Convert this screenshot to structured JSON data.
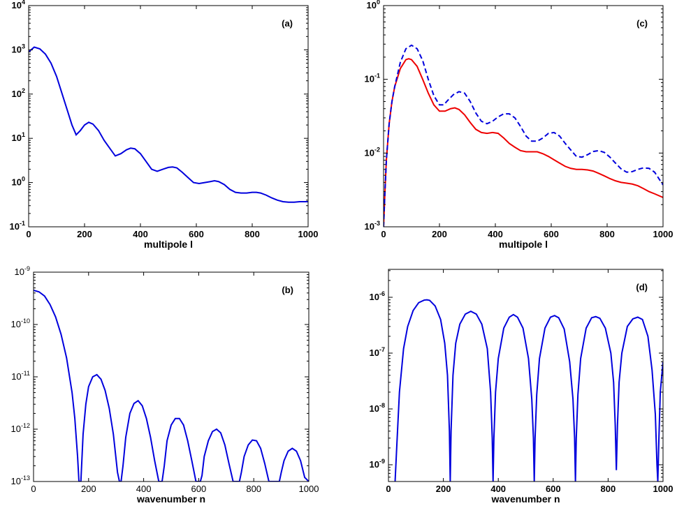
{
  "chart_data": [
    {
      "panel_label": "(a)",
      "type": "line",
      "xlabel": "multipole l",
      "xlim": [
        0,
        1000
      ],
      "xticks": [
        0,
        200,
        400,
        600,
        800,
        1000
      ],
      "yscale": "log",
      "ylim_exp": [
        -1,
        4
      ],
      "ytick_exps": [
        -1,
        0,
        1,
        2,
        3,
        4
      ],
      "bold_ticks": true,
      "series": [
        {
          "color": "#0000dd",
          "style": "solid",
          "x": [
            0,
            20,
            40,
            60,
            80,
            100,
            120,
            140,
            155,
            170,
            185,
            200,
            215,
            230,
            250,
            270,
            290,
            310,
            330,
            350,
            365,
            380,
            400,
            420,
            440,
            460,
            480,
            500,
            515,
            530,
            550,
            570,
            590,
            610,
            630,
            650,
            665,
            680,
            700,
            720,
            740,
            760,
            780,
            800,
            815,
            830,
            850,
            870,
            890,
            910,
            930,
            950,
            970,
            1000
          ],
          "y": [
            900,
            1150,
            1050,
            800,
            500,
            250,
            100,
            40,
            20,
            12,
            15,
            20,
            23,
            21,
            15,
            9,
            6,
            4,
            4.5,
            5.5,
            6,
            5.8,
            4.5,
            3,
            2,
            1.8,
            2,
            2.2,
            2.25,
            2.15,
            1.7,
            1.3,
            1.0,
            0.95,
            1.0,
            1.05,
            1.1,
            1.05,
            0.9,
            0.7,
            0.6,
            0.58,
            0.58,
            0.6,
            0.6,
            0.58,
            0.52,
            0.45,
            0.4,
            0.37,
            0.36,
            0.36,
            0.37,
            0.37
          ]
        }
      ]
    },
    {
      "panel_label": "(c)",
      "type": "line",
      "xlabel": "multipole l",
      "xlim": [
        0,
        1000
      ],
      "xticks": [
        0,
        200,
        400,
        600,
        800,
        1000
      ],
      "yscale": "log",
      "ylim_exp": [
        -3,
        0
      ],
      "ytick_exps": [
        -3,
        -2,
        -1,
        0
      ],
      "bold_ticks": true,
      "series": [
        {
          "color": "#ee0000",
          "style": "solid",
          "x": [
            0,
            5,
            10,
            20,
            30,
            40,
            60,
            80,
            90,
            100,
            120,
            140,
            160,
            180,
            200,
            220,
            240,
            255,
            270,
            290,
            310,
            330,
            350,
            370,
            390,
            410,
            430,
            450,
            470,
            490,
            510,
            530,
            550,
            570,
            590,
            610,
            630,
            650,
            670,
            690,
            710,
            730,
            750,
            770,
            790,
            810,
            830,
            850,
            870,
            890,
            910,
            930,
            950,
            970,
            1000
          ],
          "y": [
            0.001,
            0.003,
            0.008,
            0.025,
            0.05,
            0.08,
            0.14,
            0.185,
            0.19,
            0.185,
            0.15,
            0.1,
            0.065,
            0.045,
            0.037,
            0.037,
            0.04,
            0.041,
            0.039,
            0.033,
            0.026,
            0.021,
            0.019,
            0.0185,
            0.019,
            0.0185,
            0.016,
            0.0135,
            0.012,
            0.0108,
            0.0104,
            0.0104,
            0.0104,
            0.0098,
            0.009,
            0.0081,
            0.0073,
            0.0066,
            0.0062,
            0.006,
            0.006,
            0.0059,
            0.0057,
            0.0053,
            0.0049,
            0.0045,
            0.0042,
            0.004,
            0.0039,
            0.0038,
            0.0036,
            0.0033,
            0.003,
            0.0028,
            0.0025
          ]
        },
        {
          "color": "#0000dd",
          "style": "dashed",
          "x": [
            0,
            5,
            10,
            20,
            30,
            40,
            60,
            80,
            100,
            120,
            140,
            160,
            180,
            200,
            215,
            230,
            250,
            270,
            290,
            310,
            330,
            350,
            370,
            390,
            410,
            430,
            450,
            470,
            490,
            510,
            530,
            550,
            570,
            590,
            610,
            630,
            650,
            670,
            690,
            710,
            730,
            750,
            770,
            790,
            810,
            830,
            850,
            870,
            890,
            910,
            930,
            950,
            970,
            1000
          ],
          "y": [
            0.001,
            0.003,
            0.008,
            0.025,
            0.05,
            0.08,
            0.17,
            0.26,
            0.29,
            0.26,
            0.18,
            0.1,
            0.06,
            0.045,
            0.045,
            0.052,
            0.062,
            0.068,
            0.065,
            0.05,
            0.035,
            0.027,
            0.025,
            0.027,
            0.031,
            0.034,
            0.034,
            0.03,
            0.023,
            0.017,
            0.0145,
            0.0145,
            0.016,
            0.0185,
            0.019,
            0.017,
            0.0135,
            0.011,
            0.009,
            0.0088,
            0.0095,
            0.0105,
            0.0108,
            0.0102,
            0.0088,
            0.0073,
            0.0061,
            0.0055,
            0.0056,
            0.006,
            0.0063,
            0.0062,
            0.0055,
            0.0037
          ]
        }
      ]
    },
    {
      "panel_label": "(b)",
      "type": "line",
      "xlabel": "wavenumber n",
      "xlim": [
        0,
        1000
      ],
      "xticks": [
        0,
        200,
        400,
        600,
        800,
        1000
      ],
      "yscale": "log",
      "ylim_exp": [
        -13,
        -9
      ],
      "ytick_exps": [
        -13,
        -12,
        -11,
        -10,
        -9
      ],
      "bold_ticks": false,
      "series": [
        {
          "color": "#0000dd",
          "style": "solid",
          "x": [
            0,
            20,
            40,
            60,
            80,
            100,
            120,
            140,
            150,
            160,
            165,
            168,
            172,
            180,
            190,
            200,
            215,
            230,
            245,
            260,
            275,
            290,
            305,
            312,
            318,
            325,
            335,
            350,
            365,
            380,
            395,
            410,
            425,
            440,
            455,
            461,
            467,
            475,
            485,
            500,
            515,
            530,
            545,
            560,
            575,
            590,
            600,
            606,
            612,
            620,
            635,
            650,
            665,
            680,
            695,
            710,
            725,
            740,
            748,
            755,
            765,
            780,
            795,
            810,
            825,
            840,
            855,
            870,
            885,
            893,
            900,
            910,
            925,
            940,
            955,
            970,
            985,
            1000
          ],
          "y": [
            4.5e-10,
            4.2e-10,
            3.5e-10,
            2.4e-10,
            1.4e-10,
            6.5e-11,
            2.3e-11,
            5e-12,
            1.6e-12,
            3e-13,
            1e-13,
            1e-13,
            1e-13,
            8e-13,
            3e-12,
            6.5e-12,
            1e-11,
            1.1e-11,
            9e-12,
            5.5e-12,
            2.5e-12,
            8e-13,
            1.5e-13,
            1e-13,
            1e-13,
            2e-13,
            7e-13,
            2e-12,
            3.1e-12,
            3.5e-12,
            2.8e-12,
            1.6e-12,
            7e-13,
            2.5e-13,
            1e-13,
            1e-13,
            1e-13,
            2e-13,
            6e-13,
            1.2e-12,
            1.6e-12,
            1.6e-12,
            1.2e-12,
            6e-13,
            2.5e-13,
            1e-13,
            1e-13,
            1e-13,
            1.3e-13,
            3e-13,
            6e-13,
            9e-13,
            1e-12,
            8.5e-13,
            5e-13,
            2.2e-13,
            1e-13,
            1e-13,
            1e-13,
            1.5e-13,
            3e-13,
            5e-13,
            6.2e-13,
            6e-13,
            4.3e-13,
            2.2e-13,
            1e-13,
            1e-13,
            1e-13,
            1e-13,
            1.5e-13,
            2.5e-13,
            3.8e-13,
            4.3e-13,
            3.8e-13,
            2.5e-13,
            1.2e-13,
            1e-13
          ]
        }
      ]
    },
    {
      "panel_label": "(d)",
      "type": "line",
      "xlabel": "wavenumber n",
      "xlim": [
        0,
        1000
      ],
      "xticks": [
        0,
        200,
        400,
        600,
        800,
        1000
      ],
      "yscale": "log",
      "ylim_exp": [
        -9.3,
        -5.5
      ],
      "ytick_exps": [
        -9,
        -8,
        -7,
        -6
      ],
      "bold_ticks": true,
      "series": [
        {
          "color": "#0000dd",
          "style": "solid",
          "x": [
            22,
            30,
            40,
            55,
            70,
            90,
            110,
            130,
            140,
            150,
            170,
            190,
            205,
            215,
            222,
            225,
            228,
            235,
            245,
            260,
            280,
            300,
            320,
            340,
            360,
            372,
            378,
            381,
            384,
            390,
            400,
            420,
            440,
            455,
            470,
            490,
            510,
            522,
            528,
            531,
            534,
            540,
            550,
            570,
            590,
            605,
            620,
            640,
            660,
            672,
            678,
            681,
            684,
            690,
            700,
            720,
            740,
            755,
            770,
            790,
            810,
            820,
            826,
            830,
            834,
            840,
            850,
            870,
            890,
            908,
            925,
            945,
            960,
            972,
            978,
            981,
            985,
            990,
            1000
          ],
          "y": [
            3e-10,
            2e-09,
            2e-08,
            1.2e-07,
            3e-07,
            5.8e-07,
            8e-07,
            8.9e-07,
            9e-07,
            8.8e-07,
            7e-07,
            4e-07,
            1.5e-07,
            4e-08,
            4e-09,
            5e-10,
            4e-09,
            4e-08,
            1.5e-07,
            3.3e-07,
            5e-07,
            5.6e-07,
            5e-07,
            3.3e-07,
            1.2e-07,
            2e-08,
            3e-09,
            5e-10,
            3e-09,
            2e-08,
            8e-08,
            2.8e-07,
            4.4e-07,
            4.9e-07,
            4.4e-07,
            2.8e-07,
            8e-08,
            1.5e-08,
            3e-09,
            5e-10,
            3e-09,
            1.8e-08,
            8e-08,
            2.8e-07,
            4.4e-07,
            4.7e-07,
            4.3e-07,
            2.7e-07,
            7e-08,
            1.5e-08,
            3e-09,
            5e-10,
            3e-09,
            1.8e-08,
            8e-08,
            2.8e-07,
            4.3e-07,
            4.5e-07,
            4.2e-07,
            2.8e-07,
            1e-07,
            3e-08,
            5e-09,
            8e-10,
            5e-09,
            3e-08,
            1e-07,
            3e-07,
            4.1e-07,
            4.4e-07,
            4e-07,
            2e-07,
            5e-08,
            8e-09,
            1e-09,
            5e-10,
            3e-09,
            2e-08,
            7e-08
          ]
        }
      ]
    }
  ]
}
